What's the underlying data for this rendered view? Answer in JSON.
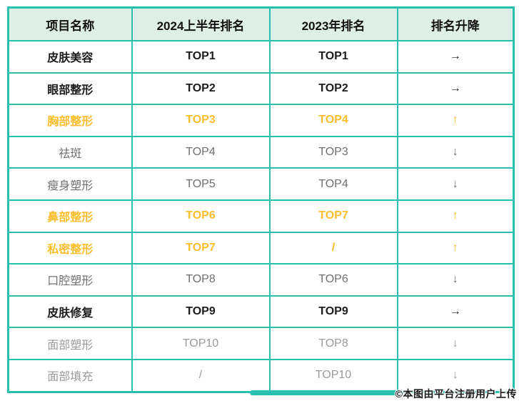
{
  "chart_data": {
    "type": "table",
    "columns": [
      "项目名称",
      "2024上半年排名",
      "2023年排名",
      "排名升降"
    ],
    "rows": [
      [
        "皮肤美容",
        "TOP1",
        "TOP1",
        "→"
      ],
      [
        "眼部整形",
        "TOP2",
        "TOP2",
        "→"
      ],
      [
        "胸部整形",
        "TOP3",
        "TOP4",
        "↑"
      ],
      [
        "祛斑",
        "TOP4",
        "TOP3",
        "↓"
      ],
      [
        "瘦身塑形",
        "TOP5",
        "TOP4",
        "↓"
      ],
      [
        "鼻部整形",
        "TOP6",
        "TOP7",
        "↑"
      ],
      [
        "私密整形",
        "TOP7",
        "/",
        "↑"
      ],
      [
        "口腔塑形",
        "TOP8",
        "TOP6",
        "↓"
      ],
      [
        "皮肤修复",
        "TOP9",
        "TOP9",
        "→"
      ],
      [
        "面部塑形",
        "TOP10",
        "TOP8",
        "↓"
      ],
      [
        "面部填充",
        "/",
        "TOP10",
        "↓"
      ]
    ]
  },
  "table": {
    "headers": [
      "项目名称",
      "2024上半年排名",
      "2023年排名",
      "排名升降"
    ],
    "rows": [
      {
        "name": "皮肤美容",
        "rank2024": "TOP1",
        "rank2023": "TOP1",
        "change": "→",
        "style": "black"
      },
      {
        "name": "眼部整形",
        "rank2024": "TOP2",
        "rank2023": "TOP2",
        "change": "→",
        "style": "black"
      },
      {
        "name": "胸部整形",
        "rank2024": "TOP3",
        "rank2023": "TOP4",
        "change": "↑",
        "style": "orange"
      },
      {
        "name": "祛斑",
        "rank2024": "TOP4",
        "rank2023": "TOP3",
        "change": "↓",
        "style": "gray"
      },
      {
        "name": "瘦身塑形",
        "rank2024": "TOP5",
        "rank2023": "TOP4",
        "change": "↓",
        "style": "gray"
      },
      {
        "name": "鼻部整形",
        "rank2024": "TOP6",
        "rank2023": "TOP7",
        "change": "↑",
        "style": "orange"
      },
      {
        "name": "私密整形",
        "rank2024": "TOP7",
        "rank2023": "/",
        "change": "↑",
        "style": "orange"
      },
      {
        "name": "口腔塑形",
        "rank2024": "TOP8",
        "rank2023": "TOP6",
        "change": "↓",
        "style": "gray"
      },
      {
        "name": "皮肤修复",
        "rank2024": "TOP9",
        "rank2023": "TOP9",
        "change": "→",
        "style": "black"
      },
      {
        "name": "面部塑形",
        "rank2024": "TOP10",
        "rank2023": "TOP8",
        "change": "↓",
        "style": "lightgray"
      },
      {
        "name": "面部填充",
        "rank2024": "/",
        "rank2023": "TOP10",
        "change": "↓",
        "style": "lightgray"
      }
    ]
  },
  "watermark": "©本图由平台注册用户上传",
  "colors": {
    "border": "#29c0af",
    "header_bg": "#def0e5",
    "text_black": "#1c1c1c",
    "highlight_orange": "#fcbe2d",
    "text_gray": "#6f6f6f",
    "text_lightgray": "#9a9a9a"
  }
}
